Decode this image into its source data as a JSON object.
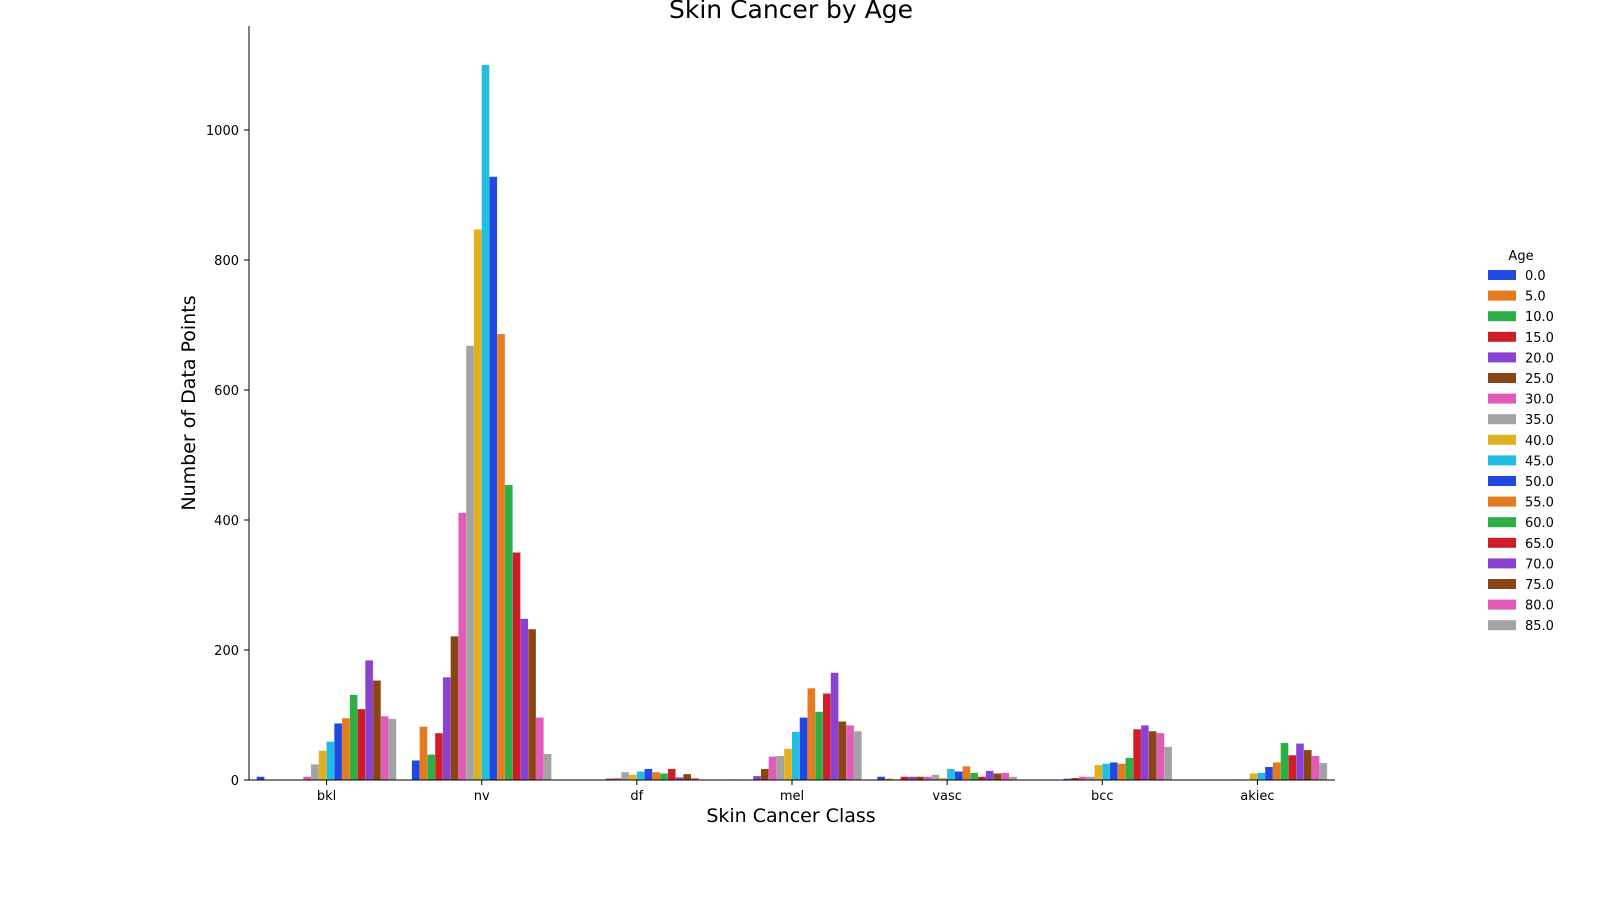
{
  "chart_data": {
    "type": "bar",
    "title": "Skin Cancer by Age",
    "xlabel": "Skin Cancer Class",
    "ylabel": "Number of Data Points",
    "ylim": [
      0,
      1160
    ],
    "yticks": [
      0,
      200,
      400,
      600,
      800,
      1000
    ],
    "grid": false,
    "legend_title": "Age",
    "legend_position": "right",
    "categories": [
      "bkl",
      "nv",
      "df",
      "mel",
      "vasc",
      "bcc",
      "akiec"
    ],
    "series": [
      {
        "name": "0.0",
        "color": "#1f49e0",
        "values": [
          5,
          30,
          0,
          0,
          5,
          0,
          0
        ]
      },
      {
        "name": "5.0",
        "color": "#e57a1e",
        "values": [
          0,
          82,
          0,
          1,
          2,
          0,
          0
        ]
      },
      {
        "name": "10.0",
        "color": "#2eaf45",
        "values": [
          0,
          39,
          0,
          0,
          1,
          0,
          0
        ]
      },
      {
        "name": "15.0",
        "color": "#cf1e2a",
        "values": [
          0,
          72,
          0,
          0,
          5,
          0,
          0
        ]
      },
      {
        "name": "20.0",
        "color": "#8a43d1",
        "values": [
          0,
          158,
          0,
          6,
          5,
          2,
          0
        ]
      },
      {
        "name": "25.0",
        "color": "#8b4515",
        "values": [
          0,
          221,
          2,
          17,
          5,
          3,
          0
        ]
      },
      {
        "name": "30.0",
        "color": "#e05cb8",
        "values": [
          5,
          411,
          3,
          36,
          5,
          5,
          1
        ]
      },
      {
        "name": "35.0",
        "color": "#a3a3a3",
        "values": [
          24,
          668,
          12,
          37,
          8,
          5,
          0
        ]
      },
      {
        "name": "40.0",
        "color": "#e0b01f",
        "values": [
          45,
          847,
          8,
          48,
          3,
          23,
          10
        ]
      },
      {
        "name": "45.0",
        "color": "#22bde0",
        "values": [
          59,
          1100,
          13,
          74,
          17,
          25,
          11
        ]
      },
      {
        "name": "50.0",
        "color": "#1f49e0",
        "values": [
          87,
          928,
          17,
          96,
          13,
          27,
          20
        ]
      },
      {
        "name": "55.0",
        "color": "#e57a1e",
        "values": [
          95,
          686,
          12,
          141,
          21,
          25,
          27
        ]
      },
      {
        "name": "60.0",
        "color": "#2eaf45",
        "values": [
          131,
          454,
          10,
          105,
          11,
          34,
          57
        ]
      },
      {
        "name": "65.0",
        "color": "#cf1e2a",
        "values": [
          109,
          350,
          17,
          133,
          5,
          78,
          38
        ]
      },
      {
        "name": "70.0",
        "color": "#8a43d1",
        "values": [
          184,
          248,
          4,
          165,
          14,
          84,
          56
        ]
      },
      {
        "name": "75.0",
        "color": "#8b4515",
        "values": [
          153,
          232,
          9,
          90,
          10,
          75,
          46
        ]
      },
      {
        "name": "80.0",
        "color": "#e05cb8",
        "values": [
          98,
          96,
          3,
          84,
          11,
          72,
          37
        ]
      },
      {
        "name": "85.0",
        "color": "#a3a3a3",
        "values": [
          94,
          40,
          0,
          75,
          5,
          51,
          26
        ]
      }
    ]
  }
}
